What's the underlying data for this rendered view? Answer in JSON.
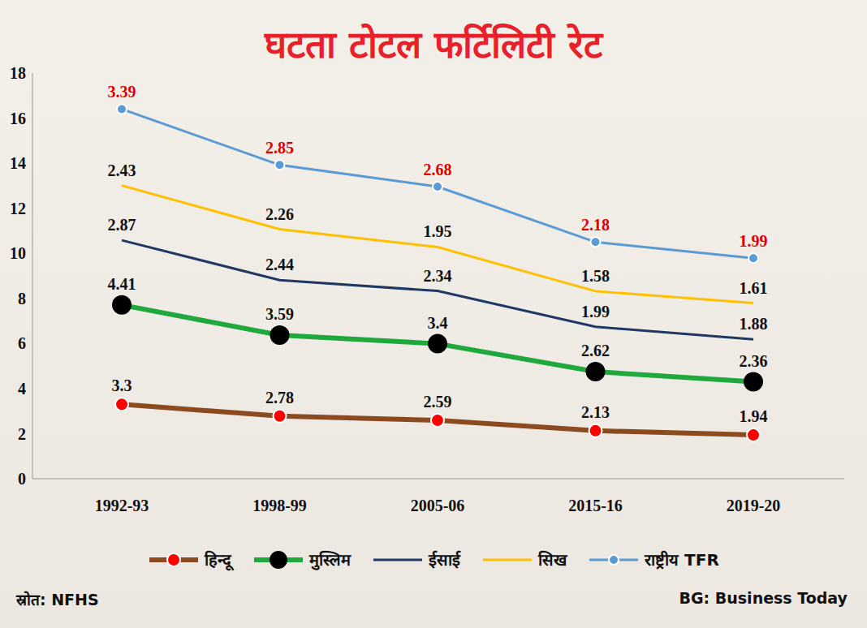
{
  "chart_data": {
    "type": "line",
    "title": "घटता टोटल फर्टिलिटी रेट",
    "stacked": true,
    "data_labels": true,
    "grid": false,
    "legend": "bottom",
    "categories": [
      "1992-93",
      "1998-99",
      "2005-06",
      "2015-16",
      "2019-20"
    ],
    "ylim": [
      0,
      18
    ],
    "yticks": [
      0,
      2,
      4,
      6,
      8,
      10,
      12,
      14,
      16,
      18
    ],
    "series": [
      {
        "name": "हिन्दू",
        "color": "#8b4a1f",
        "marker": "circle",
        "values": [
          3.3,
          2.78,
          2.59,
          2.13,
          1.94
        ]
      },
      {
        "name": "मुस्लिम",
        "color": "#1fa83c",
        "marker": "circle",
        "values": [
          4.41,
          3.59,
          3.4,
          2.62,
          2.36
        ]
      },
      {
        "name": "ईसाई",
        "color": "#1f3864",
        "marker": "none",
        "values": [
          2.87,
          2.44,
          2.34,
          1.99,
          1.88
        ]
      },
      {
        "name": "सिख",
        "color": "#ffc000",
        "marker": "none",
        "values": [
          2.43,
          2.26,
          1.95,
          1.58,
          1.61
        ]
      },
      {
        "name": "राष्ट्रीय TFR",
        "color": "#5b9bd5",
        "marker": "circle",
        "values": [
          3.39,
          2.85,
          2.68,
          2.18,
          1.99
        ]
      }
    ],
    "annotations": [
      "स्रोत: NFHS",
      "BG: Business Today"
    ]
  }
}
